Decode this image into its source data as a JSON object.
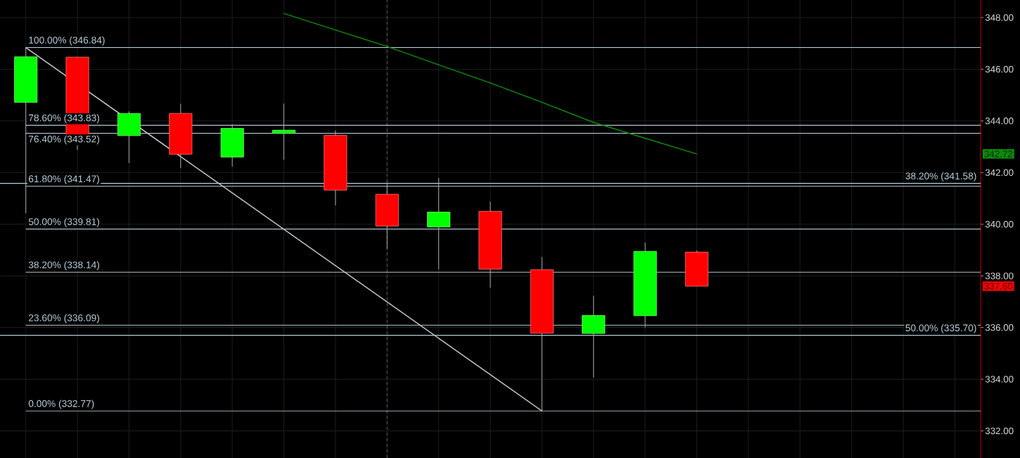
{
  "chart_data": {
    "type": "candlestick",
    "categories": [
      null,
      null,
      null,
      null,
      null,
      null,
      null,
      null,
      null,
      null,
      null,
      null,
      null,
      null,
      null,
      null,
      null,
      null,
      null
    ],
    "ohlc": [
      [
        344.72,
        346.84,
        340.43,
        346.48
      ],
      [
        346.47,
        346.47,
        342.87,
        343.43
      ],
      [
        343.43,
        344.37,
        342.37,
        344.29
      ],
      [
        344.29,
        344.66,
        342.17,
        342.71
      ],
      [
        342.6,
        343.87,
        342.23,
        343.71
      ],
      [
        343.52,
        344.67,
        342.49,
        343.64
      ],
      [
        343.44,
        343.63,
        340.73,
        341.32
      ],
      [
        341.16,
        341.62,
        339.05,
        339.93
      ],
      [
        339.89,
        341.79,
        338.25,
        340.47
      ],
      [
        340.5,
        340.88,
        337.54,
        338.26
      ],
      [
        338.24,
        338.73,
        332.77,
        335.78
      ],
      [
        335.77,
        337.23,
        334.06,
        336.47
      ],
      [
        336.46,
        339.29,
        336.0,
        338.95
      ],
      [
        338.92,
        338.98,
        337.6,
        337.6
      ],
      null,
      null,
      null,
      null,
      null
    ],
    "colors": [
      "#00ff00",
      "#ff0000",
      "#00ff00",
      "#ff0000",
      "#00ff00",
      "#00ff00",
      "#ff0000",
      "#ff0000",
      "#00ff00",
      "#ff0000",
      "#ff0000",
      "#00ff00",
      "#00ff00",
      "#ff0000",
      null,
      null,
      null,
      null,
      null
    ],
    "series": [
      {
        "type": "line",
        "color": "#0c8c0c",
        "values": [
          null,
          null,
          null,
          null,
          null,
          348.16,
          347.52,
          346.88,
          346.17,
          345.47,
          344.72,
          343.94,
          343.33,
          342.72,
          null,
          null,
          null,
          null,
          null
        ]
      },
      {
        "type": "line",
        "color": "#c8c8c8",
        "values": [
          346.84,
          null,
          null,
          null,
          null,
          null,
          null,
          null,
          null,
          null,
          332.77,
          null,
          null,
          null,
          null,
          null,
          null,
          null,
          null
        ]
      }
    ],
    "ylim": [
      330.95,
      348.68
    ],
    "yticks": [
      {
        "value": 332,
        "label": "332.00"
      },
      {
        "value": 334,
        "label": "334.00"
      },
      {
        "value": 336,
        "label": "336.00"
      },
      {
        "value": 338,
        "label": "338.00"
      },
      {
        "value": 340,
        "label": "340.00"
      },
      {
        "value": 342,
        "label": "342.00"
      },
      {
        "value": 344,
        "label": "344.00"
      },
      {
        "value": 346,
        "label": "346.00"
      },
      {
        "value": 348,
        "label": "348.00"
      },
      {
        "value": 342.72,
        "label": "342.72"
      },
      {
        "value": 337.6,
        "label": "337.60"
      }
    ],
    "grid": true,
    "ref_lines": [
      {
        "axis": "y",
        "value": 346.84,
        "label": "100.00% (346.84)",
        "color": "#b8cfdc"
      },
      {
        "axis": "y",
        "value": 343.83,
        "label": "78.60% (343.83)",
        "color": "#b8cfdc"
      },
      {
        "axis": "y",
        "value": 343.52,
        "label": "76.40% (343.52)",
        "color": "#b8cfdc"
      },
      {
        "axis": "y",
        "value": 341.47,
        "label": "61.80% (341.47)",
        "color": "#b8cfdc"
      },
      {
        "axis": "y",
        "value": 339.81,
        "label": "50.00% (339.81)",
        "color": "#b8cfdc"
      },
      {
        "axis": "y",
        "value": 338.14,
        "label": "38.20% (338.14)",
        "color": "#b8cfdc"
      },
      {
        "axis": "y",
        "value": 336.09,
        "label": "23.60% (336.09)",
        "color": "#b8cfdc"
      },
      {
        "axis": "y",
        "value": 332.77,
        "label": "0.00% (332.77)",
        "color": "#b8cfdc"
      },
      {
        "axis": "y",
        "value": 341.58,
        "color": "#b8cfdc"
      },
      {
        "axis": "y",
        "value": 335.7,
        "color": "#b8cfdc"
      }
    ],
    "annotations": [
      {
        "text": "38.20% (341.58)",
        "y": 341.58
      },
      {
        "text": "50.00% (335.70)",
        "y": 335.7
      }
    ]
  }
}
